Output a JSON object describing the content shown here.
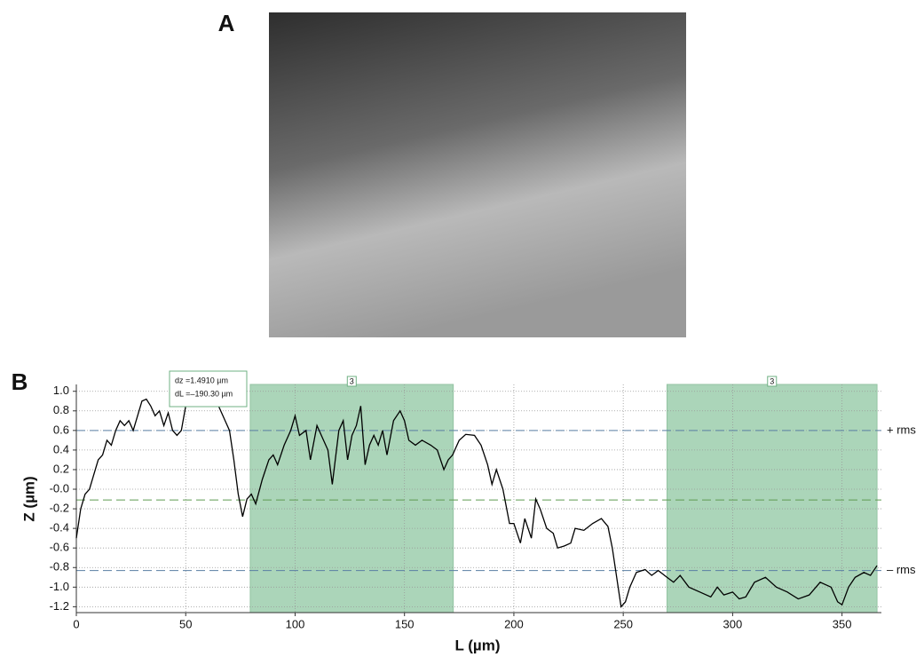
{
  "chart_data": {
    "type": "line",
    "panel_a_label": "A",
    "panel_b_label": "B",
    "xlabel": "L (µm)",
    "ylabel": "Z (µm)",
    "xlim": [
      0,
      368
    ],
    "ylim": [
      -1.26,
      1.07
    ],
    "xticks": [
      0,
      50,
      100,
      150,
      200,
      250,
      300,
      350
    ],
    "yticks": [
      {
        "value": 1,
        "label": "1.0"
      },
      0.8,
      0.6,
      0.4,
      0.2,
      {
        "value": 0,
        "label": "-0.0"
      },
      -0.2,
      -0.4,
      -0.6,
      -0.8,
      {
        "value": -1,
        "label": "-1.0"
      },
      -1.2
    ],
    "grid": true,
    "regions": [
      {
        "start": 79.5,
        "end": 172.3,
        "label": "3",
        "color": "#8fc7a2"
      },
      {
        "start": 270,
        "end": 366,
        "label": "3",
        "color": "#8fc7a2"
      }
    ],
    "reference_lines": [
      {
        "value": 0.6,
        "label": "+ rms",
        "color": "#5a7fa3"
      },
      {
        "value": -0.11,
        "color": "#5f9a52"
      },
      {
        "value": -0.83,
        "label": "– rms",
        "color": "#5a7fa3"
      }
    ],
    "annotation": [
      "dz =1.4910 µm",
      "dL =–190.30 µm"
    ],
    "series": [
      {
        "color": "#000000",
        "x": [
          0,
          2,
          4,
          6,
          8,
          10,
          12,
          14,
          16,
          18,
          20,
          22,
          24,
          26,
          28,
          30,
          32,
          34,
          36,
          38,
          40,
          42,
          44,
          46,
          48,
          50,
          55,
          60,
          65,
          70,
          72,
          74,
          76,
          78,
          80,
          82,
          85,
          88,
          90,
          92,
          95,
          98,
          100,
          102,
          105,
          107,
          110,
          112,
          115,
          117,
          120,
          122,
          124,
          126,
          128,
          130,
          132,
          134,
          136,
          138,
          140,
          142,
          145,
          148,
          150,
          152,
          155,
          158,
          162,
          165,
          168,
          170,
          172,
          175,
          178,
          182,
          185,
          188,
          190,
          192,
          195,
          198,
          200,
          203,
          205,
          208,
          210,
          212,
          215,
          218,
          220,
          223,
          226,
          228,
          232,
          236,
          240,
          243,
          245,
          247,
          249,
          251,
          253,
          256,
          260,
          263,
          266,
          270,
          273,
          276,
          280,
          285,
          290,
          293,
          296,
          300,
          303,
          306,
          310,
          315,
          320,
          325,
          330,
          335,
          340,
          345,
          348,
          350,
          353,
          356,
          360,
          363,
          366
        ],
        "values": [
          -0.5,
          -0.2,
          -0.05,
          0.0,
          0.15,
          0.3,
          0.35,
          0.5,
          0.45,
          0.6,
          0.7,
          0.65,
          0.7,
          0.6,
          0.75,
          0.9,
          0.92,
          0.85,
          0.75,
          0.8,
          0.65,
          0.78,
          0.6,
          0.55,
          0.6,
          0.85,
          0.95,
          0.9,
          0.85,
          0.6,
          0.3,
          -0.05,
          -0.28,
          -0.1,
          -0.05,
          -0.15,
          0.1,
          0.3,
          0.35,
          0.25,
          0.45,
          0.6,
          0.75,
          0.55,
          0.6,
          0.3,
          0.65,
          0.55,
          0.4,
          0.05,
          0.6,
          0.7,
          0.3,
          0.55,
          0.65,
          0.85,
          0.25,
          0.45,
          0.55,
          0.45,
          0.6,
          0.35,
          0.7,
          0.8,
          0.7,
          0.5,
          0.45,
          0.5,
          0.45,
          0.4,
          0.2,
          0.3,
          0.35,
          0.5,
          0.56,
          0.55,
          0.45,
          0.25,
          0.05,
          0.2,
          0.0,
          -0.35,
          -0.35,
          -0.55,
          -0.3,
          -0.5,
          -0.1,
          -0.2,
          -0.4,
          -0.45,
          -0.6,
          -0.58,
          -0.55,
          -0.4,
          -0.42,
          -0.35,
          -0.3,
          -0.38,
          -0.6,
          -0.9,
          -1.2,
          -1.15,
          -1.0,
          -0.85,
          -0.82,
          -0.88,
          -0.83,
          -0.9,
          -0.95,
          -0.88,
          -1.0,
          -1.05,
          -1.1,
          -1.0,
          -1.08,
          -1.05,
          -1.12,
          -1.1,
          -0.95,
          -0.9,
          -1.0,
          -1.05,
          -1.12,
          -1.08,
          -0.95,
          -1.0,
          -1.15,
          -1.18,
          -1.0,
          -0.9,
          -0.85,
          -0.88,
          -0.78
        ]
      }
    ]
  }
}
